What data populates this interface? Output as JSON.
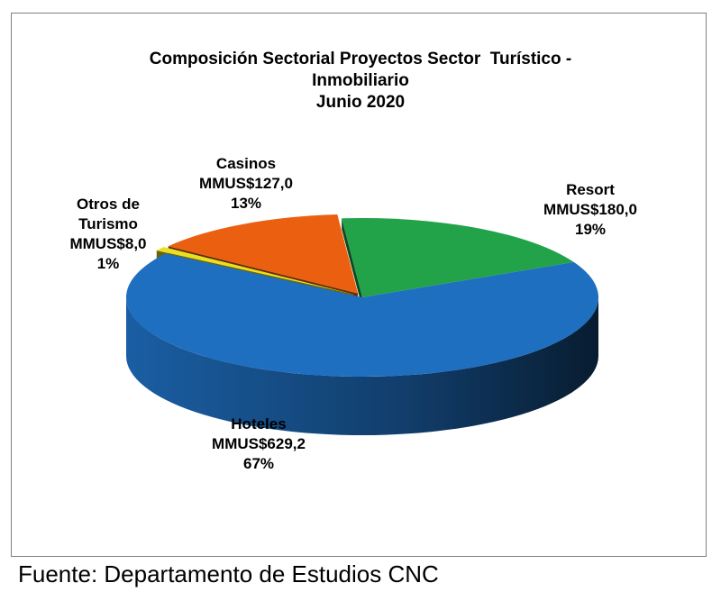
{
  "chart_data": {
    "type": "pie",
    "title": [
      "Composición Sectorial Proyectos Sector  Turístico -",
      "Inmobiliario",
      "Junio 2020"
    ],
    "slices": [
      {
        "name": "Resort",
        "value_label": "MMUS$180,0",
        "value": 180.0,
        "percent": "19%",
        "color": "#22a34a"
      },
      {
        "name": "Hoteles",
        "value_label": "MMUS$629,2",
        "value": 629.2,
        "percent": "67%",
        "color": "#1f6fc0"
      },
      {
        "name": "Otros de Turismo",
        "name_lines": [
          "Otros de",
          "Turismo"
        ],
        "value_label": "MMUS$8,0",
        "value": 8.0,
        "percent": "1%",
        "color": "#e8e020"
      },
      {
        "name": "Casinos",
        "value_label": "MMUS$127,0",
        "value": 127.0,
        "percent": "13%",
        "color": "#ea6010"
      }
    ],
    "exploded_3d": true
  },
  "source": "Fuente: Departamento de Estudios CNC"
}
